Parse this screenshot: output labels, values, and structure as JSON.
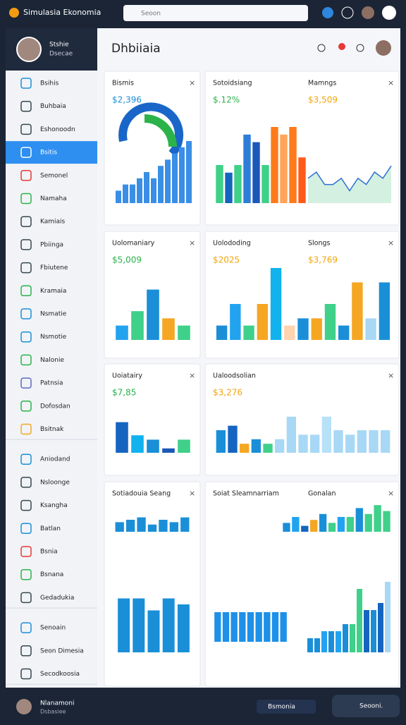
{
  "topbar": {
    "brand": "Simulasia Ekonomia",
    "search": "Seoon"
  },
  "sidebar": {
    "user": {
      "name": "Stshie",
      "role": "Dsecae"
    },
    "active": 3,
    "groups": [
      [
        "Bsihis",
        "Buhbaia",
        "Eshonoodn",
        "Bsitis",
        "Semonel",
        "Namaha",
        "Kamiais",
        "Pbiinga",
        "Fbiutene",
        "Kramaia",
        "Nsmatie",
        "Nsmotie",
        "Nalonie",
        "Patnsia",
        "Dofosdan",
        "Bsitnak"
      ],
      [
        "Aniodand",
        "Nsloonge",
        "Ksangha",
        "Batlan",
        "Bsnia",
        "Bsnana",
        "Gedadukia"
      ],
      [
        "Senoain",
        "Seon Dimesia",
        "Secodkoosia"
      ]
    ]
  },
  "header": {
    "title": "Dhbiiaia"
  },
  "cards": [
    {
      "titles": [
        "Bismis"
      ],
      "values": [
        "$2,396"
      ],
      "value_colors": [
        "#1a8fd8"
      ],
      "charts": [
        {
          "type": "bar",
          "ylim": [
            0,
            10
          ],
          "color": "#3a8ee6",
          "values": [
            2,
            3,
            3,
            4,
            5,
            4,
            6,
            7,
            8,
            9,
            10
          ]
        }
      ]
    },
    {
      "titles": [
        "Sotoidsiang",
        "Mamngs"
      ],
      "values": [
        "$.12%",
        "$3,509"
      ],
      "value_colors": [
        "#2bb34a",
        "#f2a50c"
      ],
      "charts": [
        {
          "type": "bar",
          "ylim": [
            0,
            10
          ],
          "colors": [
            "#3fd089",
            "#1565c0",
            "#3fd089",
            "#2e7dd7",
            "#1c58b8",
            "#3fd089",
            "#ff7a1a",
            "#ffa559",
            "#ff7a1a",
            "#ff5a1a"
          ],
          "values": [
            5,
            4,
            5,
            9,
            8,
            5,
            10,
            9,
            10,
            6
          ]
        },
        {
          "type": "line",
          "ylim": [
            0,
            10
          ],
          "color": "#2e6fd0",
          "values": [
            4,
            5,
            3,
            3,
            4,
            2,
            4,
            3,
            5,
            4,
            6
          ]
        }
      ]
    },
    {
      "titles": [
        "Uolomaniary"
      ],
      "values": [
        "$5,009"
      ],
      "value_colors": [
        "#2bb34a"
      ],
      "charts": [
        {
          "type": "bar",
          "ylim": [
            0,
            10
          ],
          "colors": [
            "#22a3f0",
            "#3fd089",
            "#1a8fd8",
            "#f5a623",
            "#3fd089"
          ],
          "values": [
            2,
            4,
            7,
            3,
            2
          ]
        }
      ]
    },
    {
      "titles": [
        "Uolododing",
        "Slongs"
      ],
      "values": [
        "$2025",
        "$3,769"
      ],
      "value_colors": [
        "#f2a50c",
        "#f2a50c"
      ],
      "charts": [
        {
          "type": "bar",
          "ylim": [
            0,
            10
          ],
          "colors": [
            "#1a8fd8",
            "#22a3f0",
            "#3fd089",
            "#f5a623",
            "#12b2ee",
            "#ffd3b0",
            "#1a8fd8",
            "#f5a623",
            "#3fd089",
            "#1a8fd8",
            "#f5a623",
            "#a8d8f5",
            "#1a8fd8"
          ],
          "values": [
            2,
            5,
            2,
            5,
            10,
            2,
            3,
            3,
            5,
            2,
            8,
            3,
            8
          ]
        }
      ]
    },
    {
      "titles": [
        "Uoiatairy"
      ],
      "values": [
        "$7,85"
      ],
      "value_colors": [
        "#2bb34a"
      ],
      "charts": [
        {
          "type": "bar",
          "ylim": [
            0,
            10
          ],
          "colors": [
            "#1565c0",
            "#12b2ee",
            "#1a8fd8",
            "#1c58b8",
            "#3fd089"
          ],
          "values": [
            7,
            4,
            3,
            1,
            3
          ]
        }
      ]
    },
    {
      "titles": [
        "Ualoodsolian"
      ],
      "values": [
        "$3,276"
      ],
      "value_colors": [
        "#f2a50c"
      ],
      "charts": [
        {
          "type": "bar",
          "ylim": [
            0,
            10
          ],
          "colors": [
            "#1a8fd8",
            "#1565c0",
            "#f5a623",
            "#1a8fd8",
            "#3fd089",
            "#a8d8f5",
            "#a8d8f5",
            "#a8d8f5",
            "#a8d8f5",
            "#b7e1f7",
            "#a8d8f5",
            "#a8d8f5",
            "#a8d8f5",
            "#a8d8f5",
            "#a8d8f5"
          ],
          "values": [
            5,
            6,
            2,
            3,
            2,
            3,
            8,
            4,
            4,
            8,
            5,
            4,
            5,
            5,
            5
          ]
        }
      ]
    },
    {
      "titles": [
        "Sotiadouia Seang"
      ],
      "values": [],
      "value_colors": [],
      "charts": [
        {
          "type": "bar",
          "ylim": [
            0,
            10
          ],
          "color": "#1a8fd8",
          "values": [
            4,
            5,
            6,
            3,
            5,
            4,
            6
          ]
        },
        {
          "type": "bar",
          "ylim": [
            0,
            10
          ],
          "color": "#1a8fd8",
          "values": [
            9,
            9,
            7,
            9,
            8
          ]
        }
      ]
    },
    {
      "titles": [
        "Soiat Sleamnarriam",
        "Gonalan"
      ],
      "values": [],
      "value_colors": [],
      "charts": [
        {
          "type": "bar",
          "ylim": [
            0,
            10
          ],
          "colors": [
            "#1a8fd8",
            "#22a3f0",
            "#1565c0",
            "#f5a623",
            "#1a8fd8",
            "#3fd089",
            "#22a3f0",
            "#3fd089",
            "#1a8fd8",
            "#3fd089",
            "#3fd089",
            "#3fd089"
          ],
          "values": [
            3,
            5,
            2,
            4,
            6,
            3,
            5,
            5,
            8,
            6,
            9,
            7
          ]
        },
        {
          "type": "bar",
          "ylim": [
            0,
            10
          ],
          "color": "#1e90e8",
          "values": [
            6,
            6,
            6,
            6,
            6,
            6,
            6,
            6,
            6
          ]
        },
        {
          "type": "bar",
          "ylim": [
            0,
            10
          ],
          "colors": [
            "#1a8fd8",
            "#1a8fd8",
            "#22a3f0",
            "#1a8fd8",
            "#22a3f0",
            "#1a8fd8",
            "#3fd089",
            "#3fd089",
            "#1565c0",
            "#1a8fd8",
            "#1565c0",
            "#a8d8f5"
          ],
          "values": [
            2,
            2,
            3,
            3,
            3,
            4,
            4,
            9,
            6,
            6,
            7,
            10
          ]
        }
      ]
    }
  ],
  "bottombar": {
    "user": "Nlanamoni",
    "role": "Dsbasiee",
    "button": "Bsmonia",
    "action": "Seooni."
  }
}
